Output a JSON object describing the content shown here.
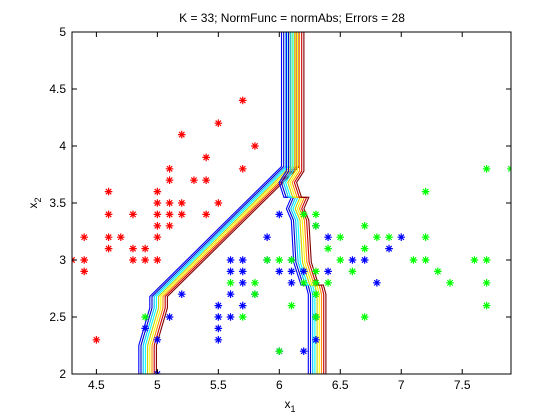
{
  "chart_data": {
    "type": "scatter",
    "title": "K = 33; NormFunc = normAbs; Errors = 28",
    "xlabel": "x",
    "xlabel_sub": "1",
    "ylabel": "x",
    "ylabel_sub": "2",
    "xlim": [
      4.3,
      7.9
    ],
    "ylim": [
      2.0,
      5.0
    ],
    "xticks": [
      4.5,
      5,
      5.5,
      6,
      6.5,
      7,
      7.5
    ],
    "xtick_labels": [
      "4.5",
      "5",
      "5.5",
      "6",
      "6.5",
      "7",
      "7.5"
    ],
    "yticks": [
      2,
      2.5,
      3,
      3.5,
      4,
      4.5,
      5
    ],
    "ytick_labels": [
      "2",
      "2.5",
      "3",
      "3.5",
      "4",
      "4.5",
      "5"
    ],
    "grid": false,
    "marker": "*",
    "series": [
      {
        "color": "#ff0000",
        "points": [
          [
            4.3,
            3.0
          ],
          [
            4.4,
            2.9
          ],
          [
            4.4,
            3.0
          ],
          [
            4.4,
            3.2
          ],
          [
            4.5,
            2.3
          ],
          [
            4.6,
            3.1
          ],
          [
            4.6,
            3.2
          ],
          [
            4.6,
            3.4
          ],
          [
            4.6,
            3.6
          ],
          [
            4.7,
            3.2
          ],
          [
            4.8,
            3.0
          ],
          [
            4.8,
            3.1
          ],
          [
            4.8,
            3.4
          ],
          [
            4.9,
            3.0
          ],
          [
            4.9,
            3.1
          ],
          [
            5.0,
            3.0
          ],
          [
            5.0,
            3.2
          ],
          [
            5.0,
            3.3
          ],
          [
            5.0,
            3.4
          ],
          [
            5.0,
            3.5
          ],
          [
            5.0,
            3.6
          ],
          [
            5.1,
            3.3
          ],
          [
            5.1,
            3.4
          ],
          [
            5.1,
            3.5
          ],
          [
            5.1,
            3.7
          ],
          [
            5.1,
            3.8
          ],
          [
            5.2,
            3.4
          ],
          [
            5.2,
            3.5
          ],
          [
            5.2,
            4.1
          ],
          [
            5.3,
            3.7
          ],
          [
            5.4,
            3.4
          ],
          [
            5.4,
            3.7
          ],
          [
            5.4,
            3.9
          ],
          [
            5.5,
            3.5
          ],
          [
            5.5,
            4.2
          ],
          [
            5.7,
            3.8
          ],
          [
            5.7,
            4.4
          ],
          [
            5.8,
            4.0
          ]
        ]
      },
      {
        "color": "#0000ff",
        "points": [
          [
            4.9,
            2.4
          ],
          [
            5.0,
            2.0
          ],
          [
            5.0,
            2.3
          ],
          [
            5.1,
            2.5
          ],
          [
            5.2,
            2.7
          ],
          [
            5.5,
            2.3
          ],
          [
            5.5,
            2.4
          ],
          [
            5.5,
            2.5
          ],
          [
            5.5,
            2.6
          ],
          [
            5.6,
            2.5
          ],
          [
            5.6,
            2.7
          ],
          [
            5.6,
            2.9
          ],
          [
            5.6,
            3.0
          ],
          [
            5.7,
            2.6
          ],
          [
            5.7,
            2.8
          ],
          [
            5.7,
            2.9
          ],
          [
            5.7,
            3.0
          ],
          [
            5.8,
            2.7
          ],
          [
            5.9,
            3.0
          ],
          [
            5.9,
            3.2
          ],
          [
            6.0,
            2.2
          ],
          [
            6.0,
            2.9
          ],
          [
            6.0,
            3.4
          ],
          [
            6.1,
            2.8
          ],
          [
            6.1,
            2.9
          ],
          [
            6.1,
            3.0
          ],
          [
            6.2,
            2.2
          ],
          [
            6.2,
            2.9
          ],
          [
            6.3,
            2.3
          ],
          [
            6.3,
            2.5
          ],
          [
            6.3,
            3.3
          ],
          [
            6.4,
            2.9
          ],
          [
            6.4,
            3.2
          ],
          [
            6.6,
            3.0
          ],
          [
            6.7,
            3.0
          ],
          [
            6.8,
            2.8
          ],
          [
            6.9,
            3.1
          ],
          [
            7.0,
            3.2
          ]
        ]
      },
      {
        "color": "#00ff00",
        "points": [
          [
            4.9,
            2.5
          ],
          [
            5.6,
            2.8
          ],
          [
            5.7,
            2.5
          ],
          [
            5.8,
            2.7
          ],
          [
            5.8,
            2.8
          ],
          [
            5.9,
            3.0
          ],
          [
            6.0,
            2.2
          ],
          [
            6.0,
            3.0
          ],
          [
            6.1,
            2.6
          ],
          [
            6.1,
            3.0
          ],
          [
            6.2,
            2.8
          ],
          [
            6.2,
            3.4
          ],
          [
            6.3,
            2.5
          ],
          [
            6.3,
            2.7
          ],
          [
            6.3,
            2.8
          ],
          [
            6.3,
            2.9
          ],
          [
            6.3,
            3.3
          ],
          [
            6.3,
            3.4
          ],
          [
            6.4,
            2.8
          ],
          [
            6.4,
            3.1
          ],
          [
            6.5,
            3.0
          ],
          [
            6.5,
            3.2
          ],
          [
            6.6,
            2.9
          ],
          [
            6.7,
            2.5
          ],
          [
            6.7,
            3.1
          ],
          [
            6.7,
            3.3
          ],
          [
            6.8,
            3.2
          ],
          [
            6.9,
            3.2
          ],
          [
            7.1,
            3.0
          ],
          [
            7.2,
            3.0
          ],
          [
            7.2,
            3.2
          ],
          [
            7.2,
            3.6
          ],
          [
            7.3,
            2.9
          ],
          [
            7.4,
            2.8
          ],
          [
            7.6,
            3.0
          ],
          [
            7.7,
            2.6
          ],
          [
            7.7,
            2.8
          ],
          [
            7.7,
            3.0
          ],
          [
            7.7,
            3.8
          ],
          [
            7.9,
            3.8
          ]
        ]
      }
    ],
    "decision_boundaries": {
      "colors": [
        "#0000ff",
        "#0000cc",
        "#00bfff",
        "#00ffff",
        "#cccc00",
        "#ffff00",
        "#ff8c00",
        "#cc0000",
        "#800000"
      ],
      "left_boundary": [
        [
          4.92,
          2.0
        ],
        [
          4.92,
          2.25
        ],
        [
          5.01,
          2.58
        ],
        [
          5.01,
          2.68
        ],
        [
          6.09,
          3.82
        ],
        [
          6.09,
          5.0
        ]
      ],
      "left_shift": 0.018,
      "right_boundary": [
        [
          6.13,
          5.0
        ],
        [
          6.13,
          3.78
        ],
        [
          6.07,
          3.68
        ],
        [
          6.11,
          3.55
        ],
        [
          6.17,
          3.55
        ],
        [
          6.13,
          3.45
        ],
        [
          6.17,
          3.35
        ],
        [
          6.19,
          2.98
        ],
        [
          6.25,
          2.78
        ],
        [
          6.29,
          2.78
        ],
        [
          6.31,
          2.7
        ],
        [
          6.31,
          2.0
        ]
      ],
      "right_shift": 0.018
    }
  }
}
